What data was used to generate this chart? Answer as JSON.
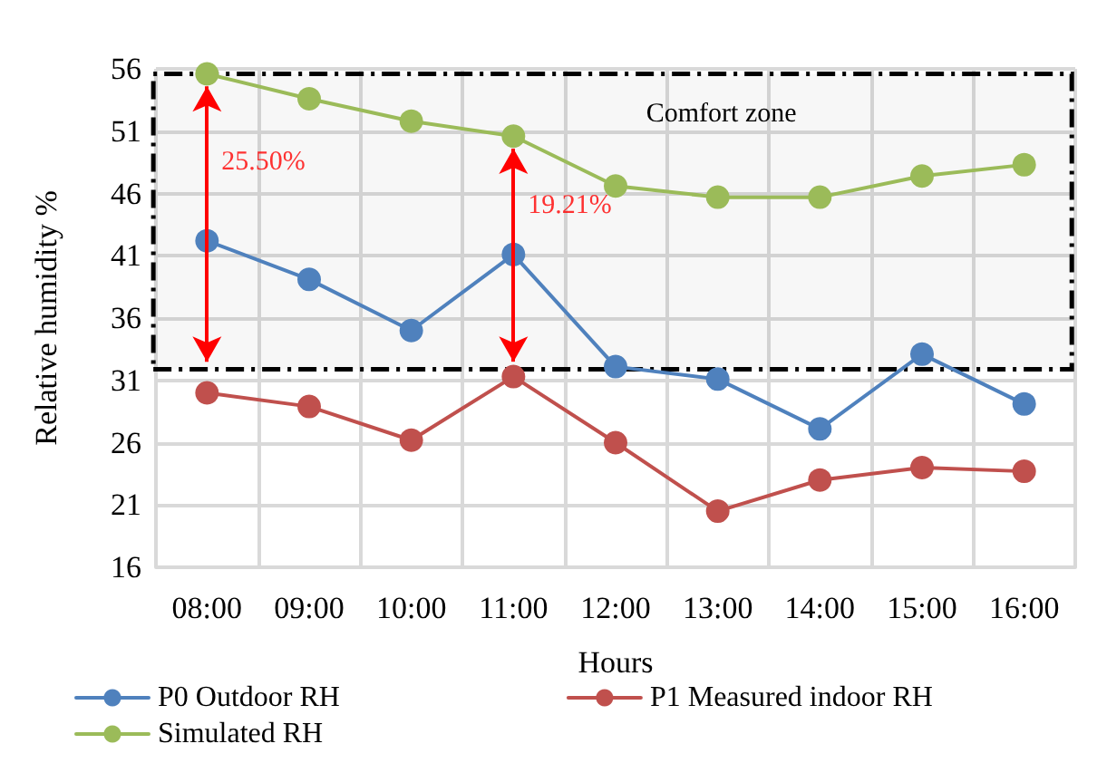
{
  "chart_data": {
    "type": "line",
    "xlabel": "Hours",
    "ylabel": "Relative humidity %",
    "categories": [
      "08:00",
      "09:00",
      "10:00",
      "11:00",
      "12:00",
      "13:00",
      "14:00",
      "15:00",
      "16:00"
    ],
    "series": [
      {
        "name": "P0 Outdoor RH",
        "color": "#4f81bd",
        "values": [
          42.2,
          39.1,
          35.0,
          41.1,
          32.1,
          31.1,
          27.1,
          33.1,
          29.1
        ]
      },
      {
        "name": "P1 Measured indoor RH",
        "color": "#c0504d",
        "values": [
          30.0,
          28.9,
          26.2,
          31.3,
          26.0,
          20.5,
          23.0,
          24.0,
          23.7
        ]
      },
      {
        "name": "Simulated RH",
        "color": "#9bbb59",
        "values": [
          55.6,
          53.6,
          51.8,
          50.6,
          46.6,
          45.7,
          45.7,
          47.4,
          48.3
        ]
      }
    ],
    "ylim": [
      16,
      56
    ],
    "yticks": [
      16,
      21,
      26,
      31,
      36,
      41,
      46,
      51,
      56
    ],
    "bands": [
      {
        "axis": "y",
        "from": 31.9,
        "to": 55.6,
        "label": "Comfort zone",
        "color": "#000000"
      }
    ],
    "annotations": [
      {
        "text": "25.50%",
        "x": "08:00",
        "y": 55.6
      },
      {
        "text": "19.21%",
        "x": "11:00",
        "y": 50.6
      }
    ],
    "grid": true,
    "legend": "bottom",
    "marker": "circle",
    "line_style": "solid"
  }
}
